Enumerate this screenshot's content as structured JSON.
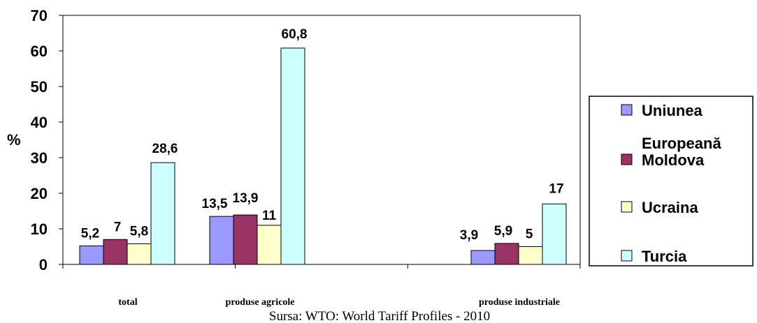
{
  "chart_data": {
    "type": "bar",
    "categories": [
      "total",
      "produse agricole",
      "produse industriale"
    ],
    "series": [
      {
        "name": "Uniunea Europeană",
        "color": "#9999ff",
        "values": [
          5.2,
          13.5,
          3.9
        ],
        "labels": [
          "5,2",
          "13,5",
          "3,9"
        ]
      },
      {
        "name": "Moldova",
        "color": "#993366",
        "values": [
          7,
          13.9,
          5.9
        ],
        "labels": [
          "7",
          "13,9",
          "5,9"
        ]
      },
      {
        "name": "Ucraina",
        "color": "#ffffcc",
        "values": [
          5.8,
          11,
          5
        ],
        "labels": [
          "5,8",
          "11",
          "5"
        ]
      },
      {
        "name": "Turcia",
        "color": "#ccffff",
        "values": [
          28.6,
          60.8,
          17
        ],
        "labels": [
          "28,6",
          "60,8",
          "17"
        ]
      }
    ],
    "ylabel": "%",
    "ylim": [
      0,
      70
    ],
    "yticks": [
      "0",
      "10",
      "20",
      "30",
      "40",
      "50",
      "60",
      "70"
    ],
    "grid": false,
    "legend": "right"
  },
  "source_note": "Sursa: WTO: World Tariff Profiles - 2010"
}
